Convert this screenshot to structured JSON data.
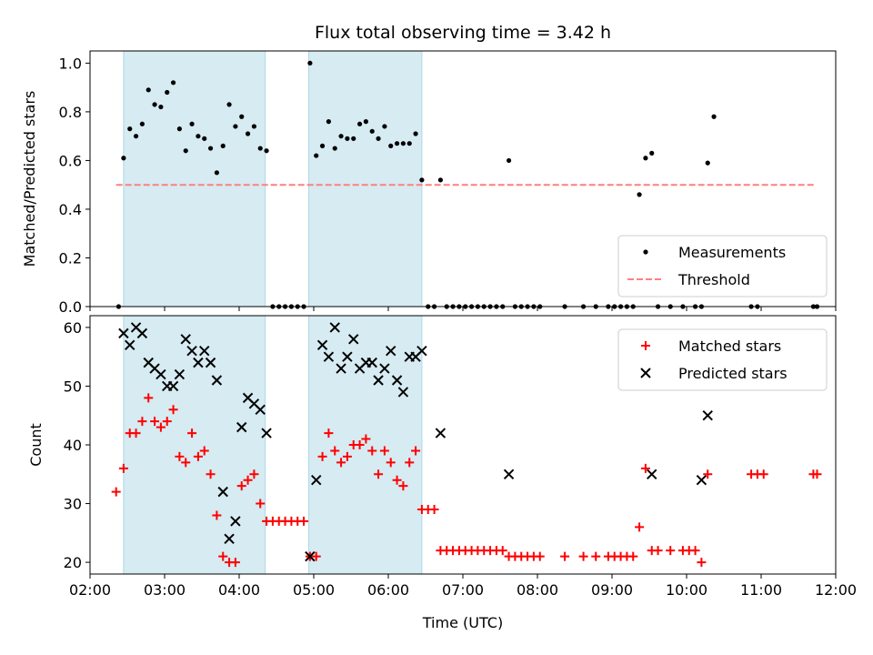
{
  "chart_data": [
    {
      "type": "scatter",
      "title": "Flux total observing time = 3.42 h",
      "xlabel": "",
      "ylabel": "Matched/Predicted stars",
      "xlim": [
        "02:00",
        "12:00"
      ],
      "ylim": [
        0,
        1.05
      ],
      "x_ticks": [
        "02:00",
        "03:00",
        "04:00",
        "05:00",
        "06:00",
        "07:00",
        "08:00",
        "09:00",
        "10:00",
        "11:00",
        "12:00"
      ],
      "y_ticks": [
        "0.0",
        "0.2",
        "0.4",
        "0.6",
        "0.8",
        "1.0"
      ],
      "shaded_intervals": [
        [
          "02:27",
          "04:21"
        ],
        [
          "04:56",
          "06:27"
        ]
      ],
      "legend": {
        "placement": "lower right",
        "entries": [
          "Measurements",
          "Threshold"
        ]
      },
      "threshold": {
        "name": "Threshold",
        "y": 0.5,
        "x_range": [
          "02:21",
          "11:43"
        ],
        "color": "#ff7f7f",
        "style": "dashed"
      },
      "series": [
        {
          "name": "Measurements",
          "marker": "dot",
          "color": "#000000",
          "points": [
            [
              "02:23",
              0.0
            ],
            [
              "02:27",
              0.61
            ],
            [
              "02:32",
              0.73
            ],
            [
              "02:37",
              0.7
            ],
            [
              "02:42",
              0.75
            ],
            [
              "02:47",
              0.89
            ],
            [
              "02:52",
              0.83
            ],
            [
              "02:57",
              0.82
            ],
            [
              "03:02",
              0.88
            ],
            [
              "03:07",
              0.92
            ],
            [
              "03:12",
              0.73
            ],
            [
              "03:17",
              0.64
            ],
            [
              "03:22",
              0.75
            ],
            [
              "03:27",
              0.7
            ],
            [
              "03:32",
              0.69
            ],
            [
              "03:37",
              0.65
            ],
            [
              "03:42",
              0.55
            ],
            [
              "03:47",
              0.66
            ],
            [
              "03:52",
              0.83
            ],
            [
              "03:57",
              0.74
            ],
            [
              "04:02",
              0.78
            ],
            [
              "04:07",
              0.71
            ],
            [
              "04:12",
              0.74
            ],
            [
              "04:17",
              0.65
            ],
            [
              "04:22",
              0.64
            ],
            [
              "04:27",
              0.0
            ],
            [
              "04:32",
              0.0
            ],
            [
              "04:37",
              0.0
            ],
            [
              "04:42",
              0.0
            ],
            [
              "04:47",
              0.0
            ],
            [
              "04:52",
              0.0
            ],
            [
              "04:57",
              1.0
            ],
            [
              "05:02",
              0.62
            ],
            [
              "05:07",
              0.66
            ],
            [
              "05:12",
              0.76
            ],
            [
              "05:17",
              0.65
            ],
            [
              "05:22",
              0.7
            ],
            [
              "05:27",
              0.69
            ],
            [
              "05:32",
              0.69
            ],
            [
              "05:37",
              0.75
            ],
            [
              "05:42",
              0.76
            ],
            [
              "05:47",
              0.72
            ],
            [
              "05:52",
              0.69
            ],
            [
              "05:57",
              0.74
            ],
            [
              "06:02",
              0.66
            ],
            [
              "06:07",
              0.67
            ],
            [
              "06:12",
              0.67
            ],
            [
              "06:17",
              0.67
            ],
            [
              "06:22",
              0.71
            ],
            [
              "06:27",
              0.52
            ],
            [
              "06:32",
              0.0
            ],
            [
              "06:37",
              0.0
            ],
            [
              "06:42",
              0.52
            ],
            [
              "06:47",
              0.0
            ],
            [
              "06:52",
              0.0
            ],
            [
              "06:57",
              0.0
            ],
            [
              "07:02",
              0.0
            ],
            [
              "07:07",
              0.0
            ],
            [
              "07:12",
              0.0
            ],
            [
              "07:17",
              0.0
            ],
            [
              "07:22",
              0.0
            ],
            [
              "07:27",
              0.0
            ],
            [
              "07:32",
              0.0
            ],
            [
              "07:37",
              0.6
            ],
            [
              "07:42",
              0.0
            ],
            [
              "07:47",
              0.0
            ],
            [
              "07:52",
              0.0
            ],
            [
              "07:57",
              0.0
            ],
            [
              "08:02",
              0.0
            ],
            [
              "08:22",
              0.0
            ],
            [
              "08:37",
              0.0
            ],
            [
              "08:47",
              0.0
            ],
            [
              "08:57",
              0.0
            ],
            [
              "09:02",
              0.0
            ],
            [
              "09:07",
              0.0
            ],
            [
              "09:12",
              0.0
            ],
            [
              "09:17",
              0.0
            ],
            [
              "09:22",
              0.46
            ],
            [
              "09:27",
              0.61
            ],
            [
              "09:32",
              0.63
            ],
            [
              "09:37",
              0.0
            ],
            [
              "09:47",
              0.0
            ],
            [
              "09:57",
              0.0
            ],
            [
              "10:07",
              0.0
            ],
            [
              "10:12",
              0.0
            ],
            [
              "10:17",
              0.59
            ],
            [
              "10:22",
              0.78
            ],
            [
              "10:52",
              0.0
            ],
            [
              "10:57",
              0.0
            ],
            [
              "11:42",
              0.0
            ],
            [
              "11:45",
              0.0
            ]
          ]
        }
      ]
    },
    {
      "type": "scatter",
      "title": "",
      "xlabel": "Time (UTC)",
      "ylabel": "Count",
      "xlim": [
        "02:00",
        "12:00"
      ],
      "ylim": [
        18,
        62
      ],
      "x_ticks": [
        "02:00",
        "03:00",
        "04:00",
        "05:00",
        "06:00",
        "07:00",
        "08:00",
        "09:00",
        "10:00",
        "11:00",
        "12:00"
      ],
      "y_ticks": [
        "20",
        "30",
        "40",
        "50",
        "60"
      ],
      "shaded_intervals": [
        [
          "02:27",
          "04:21"
        ],
        [
          "04:56",
          "06:27"
        ]
      ],
      "legend": {
        "placement": "upper right",
        "entries": [
          "Matched stars",
          "Predicted stars"
        ]
      },
      "series": [
        {
          "name": "Matched stars",
          "marker": "plus",
          "color": "#ff0000",
          "points": [
            [
              "02:21",
              32
            ],
            [
              "02:27",
              36
            ],
            [
              "02:32",
              42
            ],
            [
              "02:37",
              42
            ],
            [
              "02:42",
              44
            ],
            [
              "02:47",
              48
            ],
            [
              "02:52",
              44
            ],
            [
              "02:57",
              43
            ],
            [
              "03:02",
              44
            ],
            [
              "03:07",
              46
            ],
            [
              "03:12",
              38
            ],
            [
              "03:17",
              37
            ],
            [
              "03:22",
              42
            ],
            [
              "03:27",
              38
            ],
            [
              "03:32",
              39
            ],
            [
              "03:37",
              35
            ],
            [
              "03:42",
              28
            ],
            [
              "03:47",
              21
            ],
            [
              "03:52",
              20
            ],
            [
              "03:57",
              20
            ],
            [
              "04:02",
              33
            ],
            [
              "04:07",
              34
            ],
            [
              "04:12",
              35
            ],
            [
              "04:17",
              30
            ],
            [
              "04:22",
              27
            ],
            [
              "04:27",
              27
            ],
            [
              "04:32",
              27
            ],
            [
              "04:37",
              27
            ],
            [
              "04:42",
              27
            ],
            [
              "04:47",
              27
            ],
            [
              "04:52",
              27
            ],
            [
              "04:57",
              21
            ],
            [
              "05:02",
              21
            ],
            [
              "05:07",
              38
            ],
            [
              "05:12",
              42
            ],
            [
              "05:17",
              39
            ],
            [
              "05:22",
              37
            ],
            [
              "05:27",
              38
            ],
            [
              "05:32",
              40
            ],
            [
              "05:37",
              40
            ],
            [
              "05:42",
              41
            ],
            [
              "05:47",
              39
            ],
            [
              "05:52",
              35
            ],
            [
              "05:57",
              39
            ],
            [
              "06:02",
              37
            ],
            [
              "06:07",
              34
            ],
            [
              "06:12",
              33
            ],
            [
              "06:17",
              37
            ],
            [
              "06:22",
              39
            ],
            [
              "06:27",
              29
            ],
            [
              "06:32",
              29
            ],
            [
              "06:37",
              29
            ],
            [
              "06:42",
              22
            ],
            [
              "06:47",
              22
            ],
            [
              "06:52",
              22
            ],
            [
              "06:57",
              22
            ],
            [
              "07:02",
              22
            ],
            [
              "07:07",
              22
            ],
            [
              "07:12",
              22
            ],
            [
              "07:17",
              22
            ],
            [
              "07:22",
              22
            ],
            [
              "07:27",
              22
            ],
            [
              "07:32",
              22
            ],
            [
              "07:37",
              21
            ],
            [
              "07:42",
              21
            ],
            [
              "07:47",
              21
            ],
            [
              "07:52",
              21
            ],
            [
              "07:57",
              21
            ],
            [
              "08:02",
              21
            ],
            [
              "08:22",
              21
            ],
            [
              "08:37",
              21
            ],
            [
              "08:47",
              21
            ],
            [
              "08:57",
              21
            ],
            [
              "09:02",
              21
            ],
            [
              "09:07",
              21
            ],
            [
              "09:12",
              21
            ],
            [
              "09:17",
              21
            ],
            [
              "09:22",
              26
            ],
            [
              "09:27",
              36
            ],
            [
              "09:32",
              22
            ],
            [
              "09:37",
              22
            ],
            [
              "09:47",
              22
            ],
            [
              "09:57",
              22
            ],
            [
              "10:02",
              22
            ],
            [
              "10:07",
              22
            ],
            [
              "10:12",
              20
            ],
            [
              "10:17",
              35
            ],
            [
              "10:52",
              35
            ],
            [
              "10:57",
              35
            ],
            [
              "11:02",
              35
            ],
            [
              "11:42",
              35
            ],
            [
              "11:45",
              35
            ]
          ]
        },
        {
          "name": "Predicted stars",
          "marker": "x",
          "color": "#000000",
          "points": [
            [
              "02:27",
              59
            ],
            [
              "02:32",
              57
            ],
            [
              "02:37",
              60
            ],
            [
              "02:42",
              59
            ],
            [
              "02:47",
              54
            ],
            [
              "02:52",
              53
            ],
            [
              "02:57",
              52
            ],
            [
              "03:02",
              50
            ],
            [
              "03:07",
              50
            ],
            [
              "03:12",
              52
            ],
            [
              "03:17",
              58
            ],
            [
              "03:22",
              56
            ],
            [
              "03:27",
              54
            ],
            [
              "03:32",
              56
            ],
            [
              "03:37",
              54
            ],
            [
              "03:42",
              51
            ],
            [
              "03:47",
              32
            ],
            [
              "03:52",
              24
            ],
            [
              "03:57",
              27
            ],
            [
              "04:02",
              43
            ],
            [
              "04:07",
              48
            ],
            [
              "04:12",
              47
            ],
            [
              "04:17",
              46
            ],
            [
              "04:22",
              42
            ],
            [
              "04:57",
              21
            ],
            [
              "05:02",
              34
            ],
            [
              "05:07",
              57
            ],
            [
              "05:12",
              55
            ],
            [
              "05:17",
              60
            ],
            [
              "05:22",
              53
            ],
            [
              "05:27",
              55
            ],
            [
              "05:32",
              58
            ],
            [
              "05:37",
              53
            ],
            [
              "05:42",
              54
            ],
            [
              "05:47",
              54
            ],
            [
              "05:52",
              51
            ],
            [
              "05:57",
              53
            ],
            [
              "06:02",
              56
            ],
            [
              "06:07",
              51
            ],
            [
              "06:12",
              49
            ],
            [
              "06:17",
              55
            ],
            [
              "06:22",
              55
            ],
            [
              "06:27",
              56
            ],
            [
              "06:42",
              42
            ],
            [
              "07:37",
              35
            ],
            [
              "09:32",
              35
            ],
            [
              "10:12",
              34
            ],
            [
              "10:17",
              45
            ]
          ]
        }
      ]
    }
  ]
}
